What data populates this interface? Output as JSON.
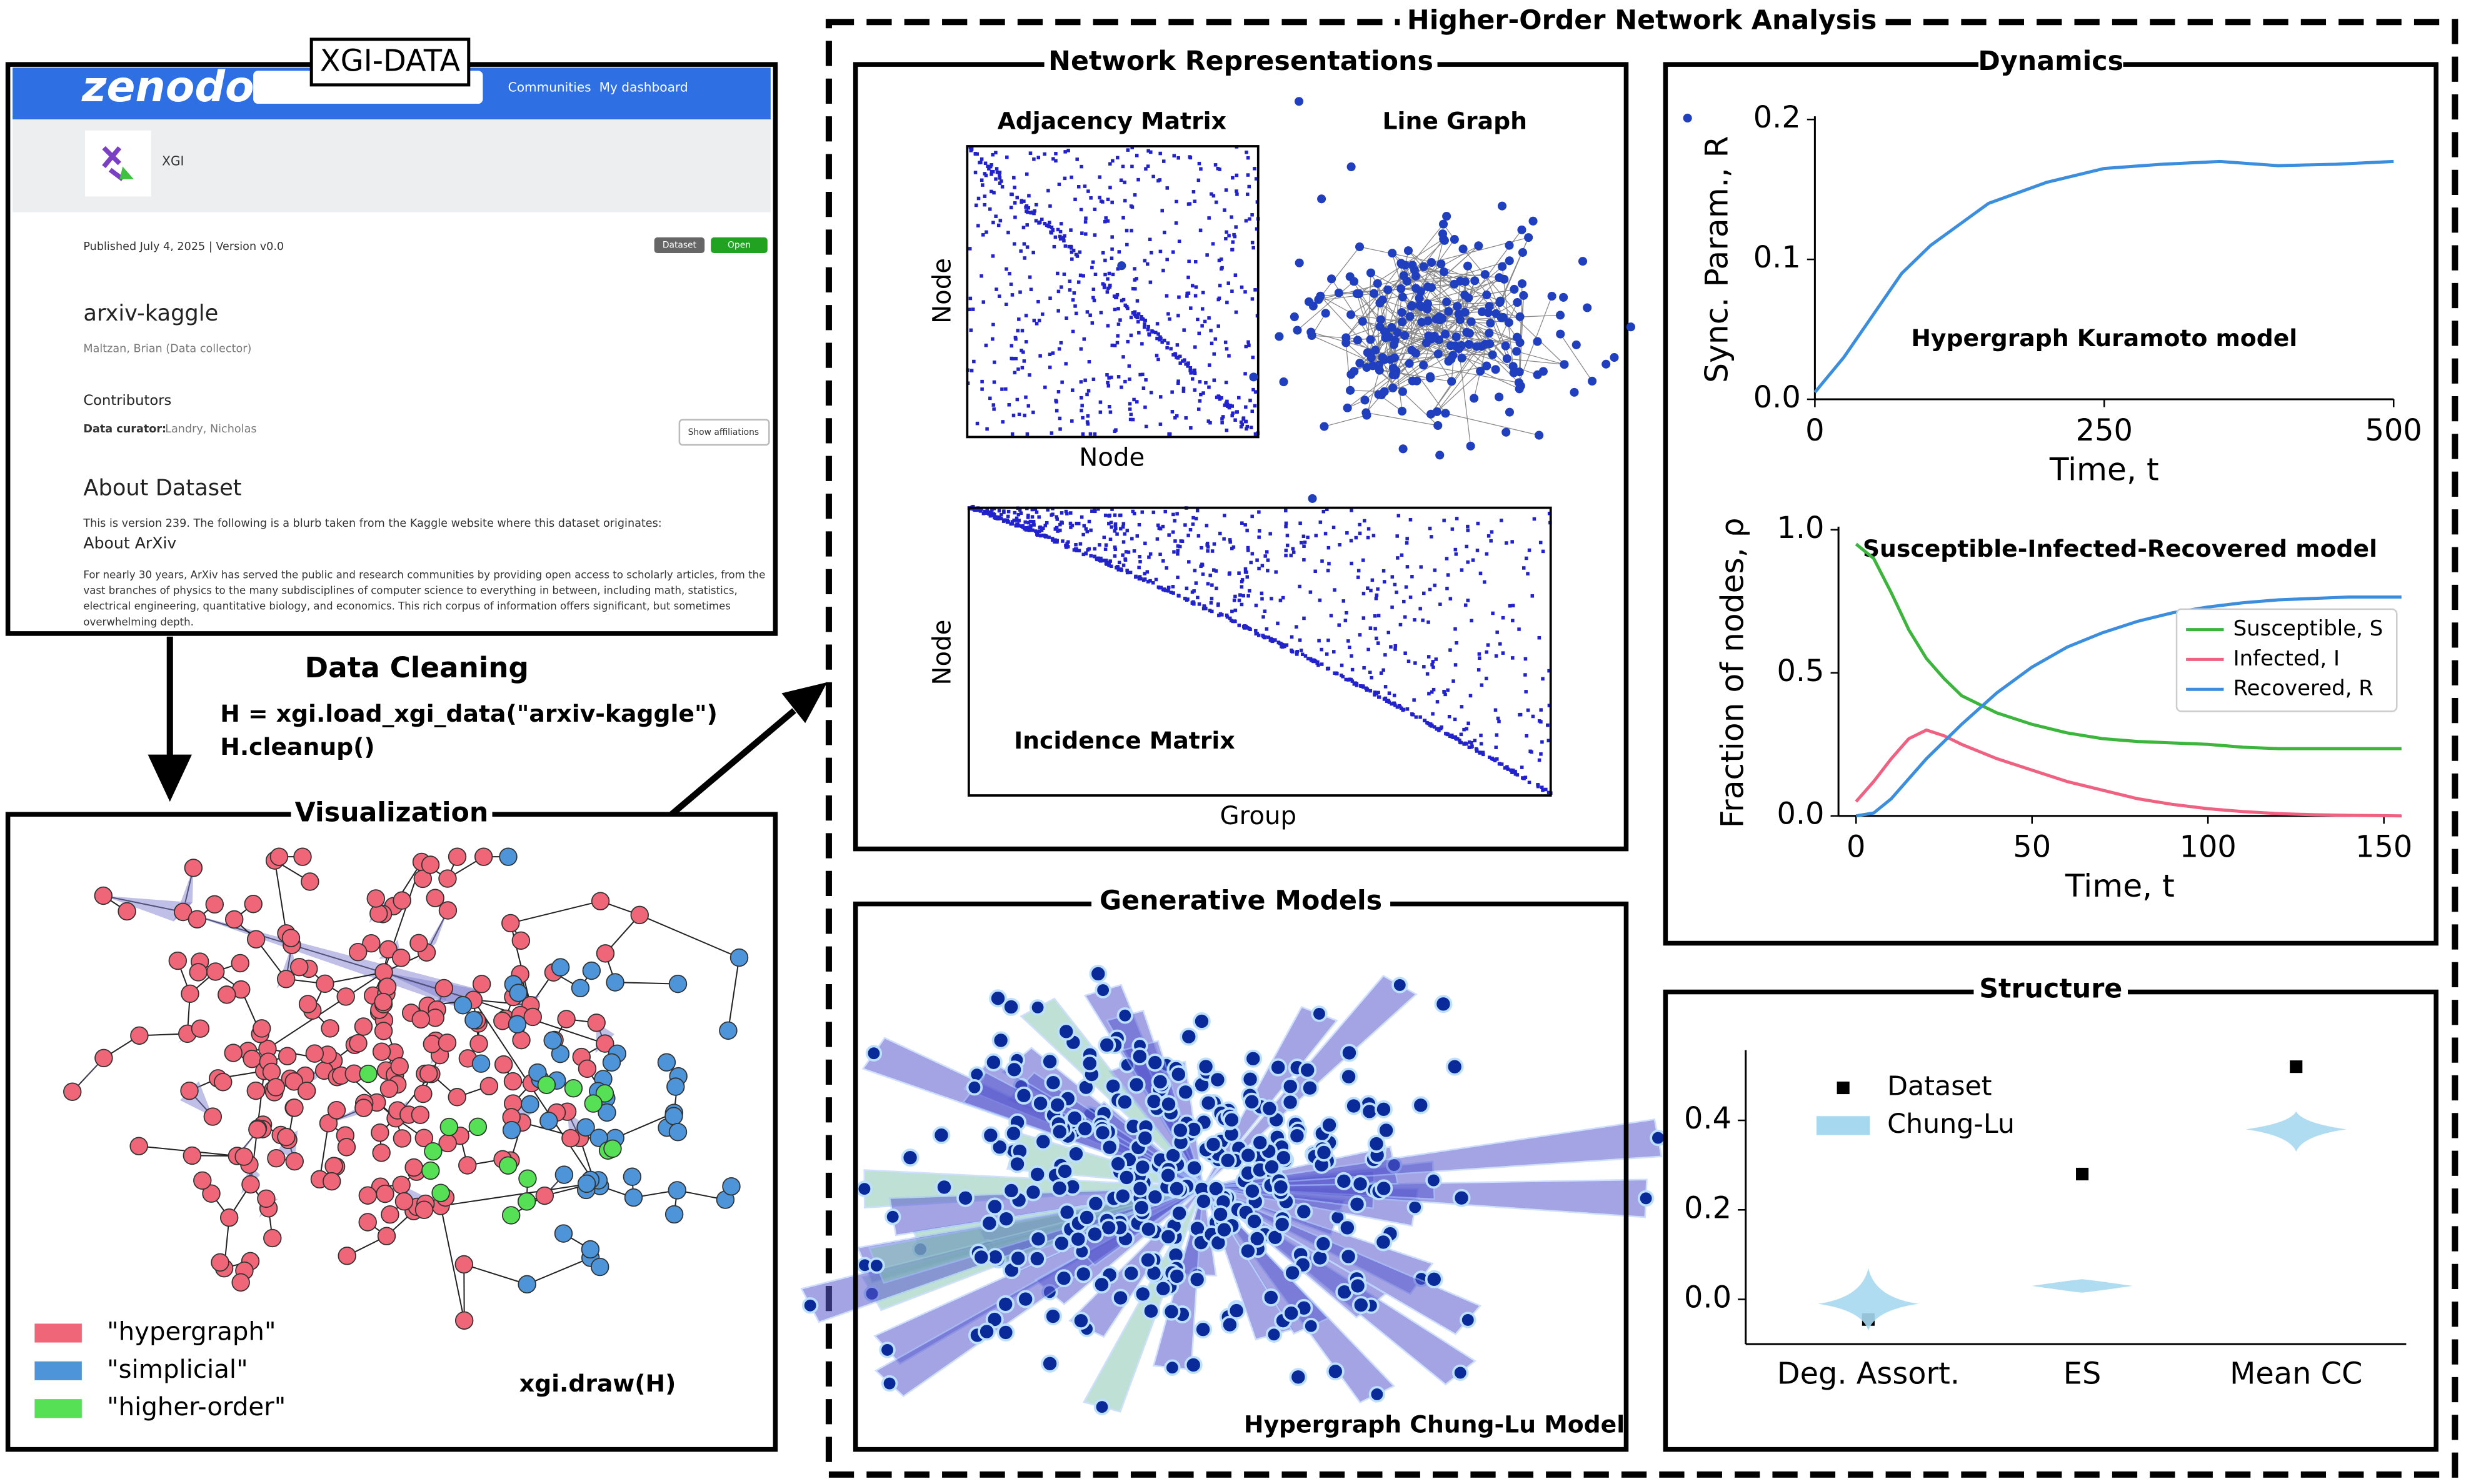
{
  "zenodo": {
    "logo": "zenodo",
    "nav": [
      "Communities",
      "My dashboard"
    ],
    "community": "XGI",
    "published": "Published July 4, 2025 | Version v0.0",
    "badges": [
      "Dataset",
      "Open"
    ],
    "record_title": "arxiv-kaggle",
    "creator": "Maltzan, Brian (Data collector)",
    "contributors_heading": "Contributors",
    "curator_role": "Data curator:",
    "curator_name": "Landry, Nicholas",
    "affiliations_button": "Show affiliations",
    "about_heading": "About Dataset",
    "blurb": "This is version 239. The following is a blurb taken from the Kaggle website where this dataset originates:",
    "about_arxiv": "About ArXiv",
    "paragraph": [
      "For nearly 30 years, ArXiv has served the public and research communities by providing open access to scholarly articles, from the",
      "vast branches of physics to the many subdisciplines of computer science to everything in between, including math, statistics,",
      "electrical engineering, quantitative biology, and economics. This rich corpus of information offers significant, but sometimes",
      "overwhelming depth."
    ]
  },
  "badge": "XGI-DATA",
  "cleaning": {
    "title": "Data Cleaning",
    "code": [
      "H = xgi.load_xgi_data(\"arxiv-kaggle\")",
      "H.cleanup()"
    ]
  },
  "visualization": {
    "title": "Visualization",
    "legend": [
      {
        "label": "\"hypergraph\"",
        "color": "#ee6677"
      },
      {
        "label": "\"simplicial\"",
        "color": "#4d94d8"
      },
      {
        "label": "\"higher-order\"",
        "color": "#55e055"
      }
    ],
    "caption": "xgi.draw(H)"
  },
  "analysis": {
    "title": "Higher-Order Network Analysis",
    "representations": {
      "title": "Network Representations",
      "adjacency": {
        "title": "Adjacency Matrix",
        "xlabel": "Node",
        "ylabel": "Node"
      },
      "line_graph": "Line Graph",
      "incidence": {
        "title": "Incidence Matrix",
        "xlabel": "Group",
        "ylabel": "Node"
      }
    },
    "generative": {
      "title": "Generative Models",
      "caption": "Hypergraph Chung-Lu Model"
    },
    "dynamics": {
      "title": "Dynamics"
    },
    "structure": {
      "title": "Structure"
    }
  },
  "chart_data": [
    {
      "type": "line",
      "annotation": "Hypergraph Kuramoto model",
      "xlabel": "Time, t",
      "ylabel": "Sync. Param., R",
      "x": [
        0,
        25,
        50,
        75,
        100,
        125,
        150,
        200,
        250,
        300,
        350,
        400,
        450,
        500
      ],
      "values": [
        0.005,
        0.03,
        0.06,
        0.09,
        0.11,
        0.125,
        0.14,
        0.155,
        0.165,
        0.168,
        0.17,
        0.167,
        0.168,
        0.17
      ],
      "color": "#3b8ede",
      "xlim": [
        0,
        500
      ],
      "xticks": [
        0,
        250,
        500
      ],
      "ylim": [
        0,
        0.2
      ],
      "yticks": [
        {
          "value": 0,
          "label": "0.0"
        },
        0.1,
        0.2
      ]
    },
    {
      "type": "line",
      "annotation": "Susceptible-Infected-Recovered model",
      "xlabel": "Time, t",
      "ylabel": "Fraction of nodes, ρ",
      "x": [
        0,
        5,
        10,
        15,
        20,
        25,
        30,
        40,
        50,
        60,
        70,
        80,
        90,
        100,
        110,
        120,
        130,
        140,
        155
      ],
      "series": [
        {
          "name": "Susceptible, S",
          "color": "#3cb53c",
          "values": [
            0.95,
            0.9,
            0.78,
            0.65,
            0.55,
            0.48,
            0.42,
            0.36,
            0.32,
            0.29,
            0.27,
            0.26,
            0.255,
            0.25,
            0.24,
            0.235,
            0.235,
            0.235,
            0.235
          ]
        },
        {
          "name": "Infected, I",
          "color": "#f06080",
          "values": [
            0.05,
            0.12,
            0.2,
            0.27,
            0.3,
            0.28,
            0.25,
            0.2,
            0.16,
            0.12,
            0.09,
            0.06,
            0.04,
            0.025,
            0.015,
            0.008,
            0.004,
            0.002,
            0
          ]
        },
        {
          "name": "Recovered, R",
          "color": "#3b8ede",
          "values": [
            0,
            0.01,
            0.06,
            0.13,
            0.2,
            0.26,
            0.32,
            0.43,
            0.52,
            0.59,
            0.64,
            0.68,
            0.71,
            0.73,
            0.745,
            0.755,
            0.76,
            0.765,
            0.765
          ]
        }
      ],
      "legend": "right",
      "xlim": [
        -5,
        155
      ],
      "xticks": [
        0,
        50,
        100,
        150
      ],
      "ylim": [
        0,
        1
      ],
      "yticks": [
        {
          "value": 0,
          "label": "0.0"
        },
        0.5,
        {
          "value": 1,
          "label": "1.0"
        }
      ]
    },
    {
      "type": "violin",
      "categories": [
        "Deg. Assort.",
        "ES",
        "Mean CC"
      ],
      "series": [
        {
          "name": "Dataset",
          "color": "#000000",
          "values": [
            -0.045,
            0.28,
            0.52
          ]
        },
        {
          "name": "Chung-Lu",
          "color": "#a6d8f0",
          "values": [
            -0.01,
            0.03,
            0.38
          ],
          "low": [
            -0.07,
            0.015,
            0.33
          ],
          "high": [
            0.07,
            0.045,
            0.42
          ]
        }
      ],
      "legend": "upper left",
      "ylim": [
        -0.1,
        0.55
      ],
      "yticks": [
        {
          "value": 0,
          "label": "0.0"
        },
        0.2,
        0.4
      ]
    }
  ]
}
